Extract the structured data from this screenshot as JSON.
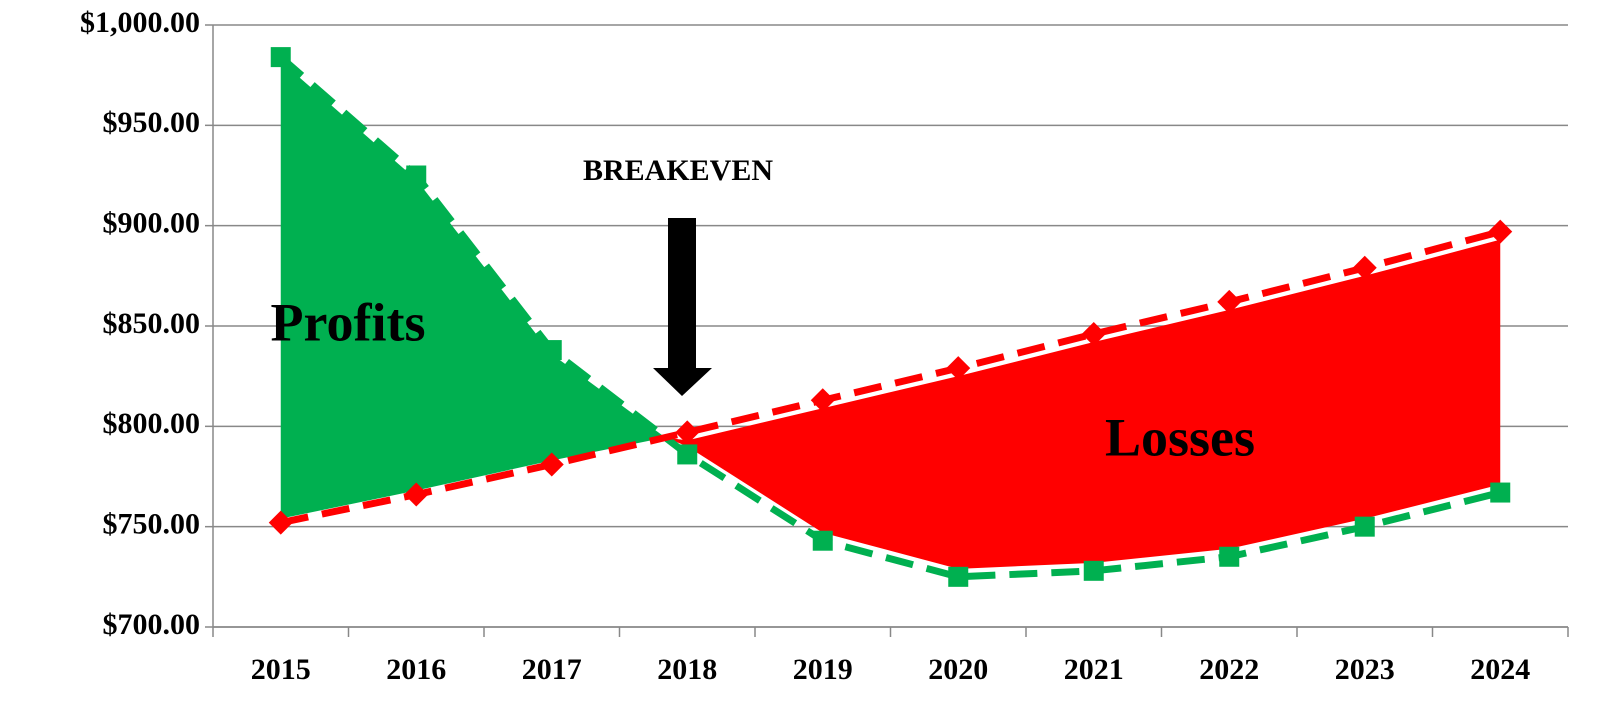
{
  "chart_data": {
    "type": "line",
    "categories": [
      "2015",
      "2016",
      "2017",
      "2018",
      "2019",
      "2020",
      "2021",
      "2022",
      "2023",
      "2024"
    ],
    "series": [
      {
        "color": "#00b050",
        "marker": "square",
        "values": [
          984,
          925,
          838,
          786,
          743,
          725,
          728,
          735,
          750,
          767
        ]
      },
      {
        "color": "#ff0000",
        "marker": "diamond",
        "values": [
          752,
          766,
          781,
          797,
          813,
          829,
          846,
          862,
          879,
          897
        ]
      }
    ],
    "ylim": [
      700,
      1000
    ],
    "yticks": [
      {
        "value": 700,
        "label": "$700.00"
      },
      {
        "value": 750,
        "label": "$750.00"
      },
      {
        "value": 800,
        "label": "$800.00"
      },
      {
        "value": 850,
        "label": "$850.00"
      },
      {
        "value": 900,
        "label": "$900.00"
      },
      {
        "value": 950,
        "label": "$950.00"
      },
      {
        "value": 1000,
        "label": "$1,000.00"
      }
    ],
    "grid": true,
    "annotations": [
      "Profits",
      "Losses",
      "BREAKEVEN"
    ],
    "fill_colors": [
      "#00b050",
      "#ff0000"
    ]
  }
}
